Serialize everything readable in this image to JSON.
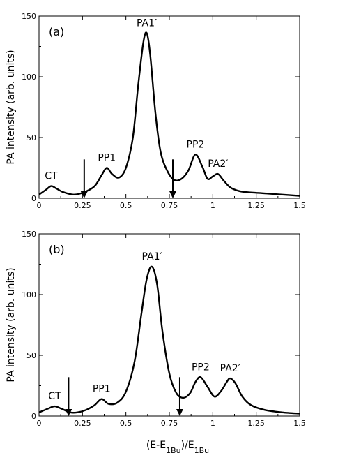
{
  "chart_data": [
    {
      "type": "line",
      "panel_label": "(a)",
      "ylabel": "PA intensity (arb. units)",
      "xlim": [
        0,
        1.5
      ],
      "ylim": [
        0,
        150
      ],
      "x_ticks": [
        "0",
        "0.25",
        "0.5",
        "0.75",
        "1",
        "1.25",
        "1.5"
      ],
      "y_ticks": [
        "0",
        "50",
        "100",
        "150"
      ],
      "series": [
        {
          "x": [
            0.0,
            0.04,
            0.07,
            0.1,
            0.14,
            0.2,
            0.26,
            0.32,
            0.36,
            0.39,
            0.42,
            0.46,
            0.5,
            0.54,
            0.57,
            0.6,
            0.62,
            0.64,
            0.67,
            0.7,
            0.74,
            0.78,
            0.82,
            0.86,
            0.9,
            0.94,
            0.97,
            1.0,
            1.03,
            1.06,
            1.1,
            1.15,
            1.2,
            1.3,
            1.4,
            1.5
          ],
          "y": [
            3,
            7,
            10,
            8,
            5,
            3,
            5,
            10,
            19,
            25,
            20,
            17,
            25,
            50,
            92,
            128,
            136,
            118,
            70,
            38,
            22,
            15,
            16,
            23,
            36,
            26,
            16,
            18,
            20,
            15,
            9,
            6,
            5,
            4,
            3,
            2
          ]
        }
      ],
      "peak_labels": [
        {
          "text": "CT",
          "x": 0.07,
          "y": 10
        },
        {
          "text": "PP1",
          "x": 0.39,
          "y": 25
        },
        {
          "text": "PA1′",
          "x": 0.62,
          "y": 136
        },
        {
          "text": "PP2",
          "x": 0.9,
          "y": 36
        },
        {
          "text": "PA2′",
          "x": 1.03,
          "y": 20
        }
      ],
      "arrows": [
        {
          "x": 0.26,
          "y_top": 32,
          "y_bottom": 0
        },
        {
          "x": 0.77,
          "y_top": 32,
          "y_bottom": 0
        }
      ]
    },
    {
      "type": "line",
      "panel_label": "(b)",
      "ylabel": "PA intensity (arb. units)",
      "xlabel": "(E-E1Bu)/E1Bu",
      "xlim": [
        0,
        1.5
      ],
      "ylim": [
        0,
        150
      ],
      "x_ticks": [
        "0",
        "0.25",
        "0.5",
        "0.75",
        "1",
        "1.25",
        "1.5"
      ],
      "y_ticks": [
        "0",
        "50",
        "100",
        "150"
      ],
      "series": [
        {
          "x": [
            0.0,
            0.05,
            0.09,
            0.13,
            0.18,
            0.22,
            0.27,
            0.32,
            0.36,
            0.4,
            0.45,
            0.5,
            0.55,
            0.59,
            0.62,
            0.65,
            0.68,
            0.71,
            0.75,
            0.79,
            0.83,
            0.87,
            0.9,
            0.93,
            0.97,
            1.01,
            1.05,
            1.08,
            1.1,
            1.13,
            1.17,
            1.22,
            1.3,
            1.4,
            1.5
          ],
          "y": [
            3,
            6,
            8,
            6,
            3,
            3,
            5,
            9,
            14,
            10,
            11,
            20,
            45,
            85,
            113,
            123,
            108,
            70,
            35,
            19,
            15,
            19,
            28,
            32,
            24,
            16,
            21,
            28,
            31,
            27,
            16,
            9,
            5,
            3,
            2
          ]
        }
      ],
      "peak_labels": [
        {
          "text": "CT",
          "x": 0.09,
          "y": 8
        },
        {
          "text": "PP1",
          "x": 0.36,
          "y": 14
        },
        {
          "text": "PA1′",
          "x": 0.65,
          "y": 123
        },
        {
          "text": "PP2",
          "x": 0.93,
          "y": 32
        },
        {
          "text": "PA2′",
          "x": 1.1,
          "y": 31
        }
      ],
      "arrows": [
        {
          "x": 0.17,
          "y_top": 32,
          "y_bottom": 0
        },
        {
          "x": 0.81,
          "y_top": 32,
          "y_bottom": 0
        }
      ]
    }
  ],
  "xlabel_parts": {
    "prefix": "(E-E",
    "sub1": "1Bu",
    "mid": ")/E",
    "sub2": "1Bu"
  }
}
